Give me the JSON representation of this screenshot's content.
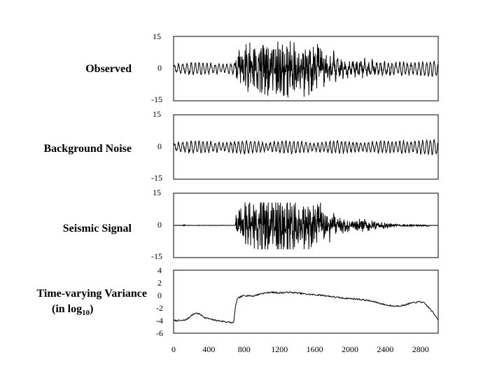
{
  "chart_data": [
    {
      "type": "line",
      "panel_label": "Observed",
      "xlim": [
        0,
        3000
      ],
      "ylim": [
        -15,
        15
      ],
      "yticks": [
        "15",
        "0",
        "-15"
      ],
      "signal_shape": "background noise plus earthquake signal; strong burst from about x=700 to x=2000, peak amplitude about ±12 near x=1000–1300"
    },
    {
      "type": "line",
      "panel_label": "Background Noise",
      "xlim": [
        0,
        3000
      ],
      "ylim": [
        -15,
        15
      ],
      "yticks": [
        "15",
        "0",
        "-15"
      ],
      "signal_shape": "stationary oscillating noise of amplitude about ±3 across the whole record"
    },
    {
      "type": "line",
      "panel_label": "Seismic Signal",
      "xlim": [
        0,
        3000
      ],
      "ylim": [
        -15,
        15
      ],
      "yticks": [
        "15",
        "0",
        "-15"
      ],
      "signal_shape": "near zero until about x=700, sudden onset, amplitude up to about ±10 around x=1000–1300, decaying to near zero by x=2900"
    },
    {
      "type": "line",
      "panel_label": "Time-varying Variance",
      "panel_label_sub": "(in log",
      "panel_label_sub_index": "10",
      "panel_label_sub_end": ")",
      "xlim": [
        0,
        3000
      ],
      "ylim": [
        -6,
        4
      ],
      "yticks": [
        "4",
        "2",
        "0",
        "-2",
        "-4",
        "-6"
      ],
      "xticks": [
        "0",
        "400",
        "800",
        "1200",
        "1600",
        "2000",
        "2400",
        "2800"
      ],
      "x": [
        0,
        100,
        150,
        200,
        250,
        300,
        350,
        400,
        450,
        500,
        550,
        600,
        650,
        680,
        700,
        720,
        750,
        800,
        900,
        1000,
        1100,
        1200,
        1300,
        1400,
        1500,
        1600,
        1700,
        1800,
        1900,
        2000,
        2100,
        2200,
        2300,
        2400,
        2500,
        2600,
        2700,
        2800,
        2850,
        2900,
        2950,
        3000
      ],
      "values": [
        -4.0,
        -4.0,
        -3.8,
        -3.2,
        -2.8,
        -3.0,
        -3.5,
        -3.7,
        -3.9,
        -4.0,
        -4.1,
        -4.2,
        -4.3,
        -4.4,
        -2.0,
        -0.6,
        -0.3,
        0.0,
        -0.1,
        0.3,
        0.5,
        0.4,
        0.5,
        0.4,
        0.2,
        0.1,
        0.0,
        -0.2,
        -0.4,
        -0.5,
        -0.6,
        -0.8,
        -1.1,
        -1.5,
        -1.7,
        -1.6,
        -1.2,
        -1.0,
        -1.3,
        -2.0,
        -2.9,
        -3.8
      ]
    }
  ]
}
